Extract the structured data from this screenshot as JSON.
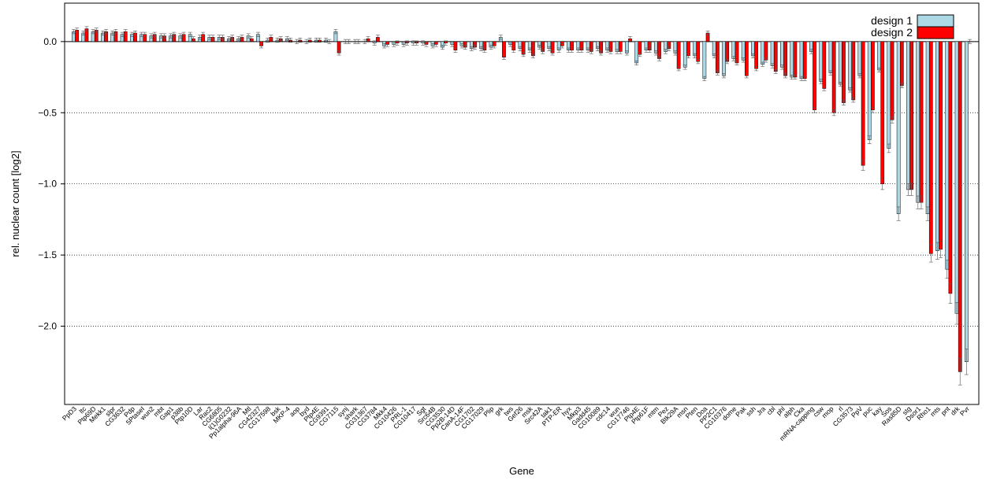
{
  "chart_data": {
    "type": "bar",
    "title": "",
    "xlabel": "Gene",
    "ylabel": "rel. nuclear count [log2]",
    "ylim": [
      -2.55,
      0.27
    ],
    "yticks": [
      0.0,
      -0.5,
      -1.0,
      -1.5,
      -2.0
    ],
    "ytick_labels": [
      "0.0",
      "−0.5",
      "−1.0",
      "−1.5",
      "−2.0"
    ],
    "grid": "horizontal dotted",
    "legend_position": "top-right",
    "colors": {
      "design 1": "#add8e6",
      "design 2": "#ff0000"
    },
    "categories": [
      "PpD3",
      "ltc",
      "Ptp69D",
      "Mekk1",
      "slpr",
      "CG3632",
      "Pdp",
      "5PtaseI",
      "wun2",
      "mbt",
      "Gap1",
      "p38b",
      "Ptp10D",
      "Lar",
      "Rac2",
      "CG6805",
      "l(1)G0232",
      "Pp1alpha-96A",
      "Mtl",
      "CG42327",
      "CG17598",
      "bsk",
      "MKP-4",
      "aop",
      "byd",
      "Ptp4E",
      "CG9391",
      "CG7115",
      "synj",
      "shark",
      "CG31367",
      "CG3784",
      "Mkk4",
      "CG10426",
      "PRL-1",
      "CG10417",
      "Sgt",
      "Src64B",
      "CG3530",
      "Pp2B-14D",
      "CanA-14F",
      "CG1702",
      "CG17029",
      "Plip",
      "grk",
      "tws",
      "Gef26",
      "msk",
      "Src42A",
      "tak1",
      "PTP-ER",
      "hyx",
      "Mkp3",
      "Gadd45",
      "CG10089",
      "cdc14",
      "wun",
      "CG17746",
      "Ptp4E",
      "Ptp61F",
      "mtm",
      "Pez",
      "Btk29A",
      "msn",
      "Pten",
      "Doa",
      "PP2C1",
      "CG10376",
      "dome",
      "Pak",
      "ssh",
      "Jra",
      "cbl",
      "phl",
      "alph",
      "Cka",
      "mRNA-capping",
      "csw",
      "mop",
      "rl",
      "CG3573",
      "PpV",
      "puc",
      "kay",
      "Sos",
      "Ras85D",
      "stg",
      "Dsor1",
      "Rho1",
      "mts",
      "pnt",
      "drk",
      "Pvr"
    ],
    "category_labels_shown": [
      "PpD3",
      "ltc",
      "Ptp69D",
      "Mekk1",
      "slpr",
      "CG3632",
      "Pdp",
      "5PtaseI",
      "wun2",
      "mbt",
      "Gap1",
      "p38b",
      "Ptp10D",
      "Lar",
      "Rac2",
      "CG6805",
      "l(1)G0232",
      "Pp1alpha-96A",
      "Mtl",
      "CG42327",
      "CG17598",
      "bsk",
      "MKP-4",
      "aop",
      "byd",
      "Ptp4E",
      "CG9391",
      "CG7115",
      "synj",
      "shark",
      "CG31367",
      "CG3784",
      "Mkk4",
      "CG10426",
      "PRL-1",
      "CG10417",
      "Sgt",
      "Src64B",
      "CG3530",
      "Pp2B-14D",
      "CanA-14F",
      "CG1702",
      "CG17029",
      "Plip",
      "grk",
      "tws",
      "Gef26",
      "msk",
      "Src42A",
      "tak1",
      "PTP-ER",
      "hyx",
      "Mkp3",
      "Gadd45",
      "CG10089",
      "cdc14",
      "wun",
      "CG17746",
      "Ptp4E",
      "Ptp61F",
      "mtm",
      "Pez",
      "Btk29A",
      "msn",
      "Pten",
      "Doa",
      "PP2C1",
      "CG10376",
      "dome",
      "Pak",
      "ssh",
      "Jra",
      "cbl",
      "phl",
      "alph",
      "Cka",
      "mRNA-capping",
      "csw",
      "mop",
      "rl",
      "CG3573",
      "PpV",
      "puc",
      "kay",
      "Sos",
      "Ras85D",
      "stg",
      "Dsor1",
      "Rho1",
      "mts",
      "pnt",
      "drk",
      "Pvr"
    ],
    "series": [
      {
        "name": "design 1",
        "values": [
          0.07,
          0.06,
          0.07,
          0.06,
          0.06,
          0.05,
          0.05,
          0.05,
          0.04,
          0.04,
          0.04,
          0.04,
          0.05,
          0.03,
          0.03,
          0.03,
          0.02,
          0.02,
          0.04,
          0.05,
          0.01,
          0.01,
          0.02,
          0.0,
          0.0,
          0.01,
          0.01,
          0.07,
          0.0,
          0.0,
          0.0,
          -0.01,
          -0.03,
          -0.02,
          -0.02,
          -0.01,
          -0.01,
          -0.03,
          -0.04,
          -0.02,
          -0.03,
          -0.05,
          -0.05,
          -0.04,
          0.03,
          -0.02,
          -0.05,
          -0.06,
          -0.04,
          -0.05,
          -0.06,
          -0.06,
          -0.06,
          -0.06,
          -0.05,
          -0.06,
          -0.07,
          -0.08,
          -0.15,
          -0.06,
          -0.08,
          -0.07,
          -0.08,
          -0.18,
          -0.1,
          -0.26,
          -0.1,
          -0.24,
          -0.12,
          -0.13,
          -0.1,
          -0.16,
          -0.17,
          -0.18,
          -0.25,
          -0.26,
          -0.07,
          -0.28,
          -0.22,
          -0.3,
          -0.34,
          -0.24,
          -0.69,
          -0.2,
          -0.75,
          -1.21,
          -1.04,
          -1.13,
          -1.21,
          -1.47,
          -1.6,
          -1.91,
          -2.25
        ]
      },
      {
        "name": "design 2",
        "values": [
          0.08,
          0.09,
          0.08,
          0.07,
          0.07,
          0.07,
          0.06,
          0.05,
          0.05,
          0.04,
          0.05,
          0.05,
          0.02,
          0.05,
          0.03,
          0.03,
          0.03,
          0.03,
          0.02,
          -0.03,
          0.03,
          0.02,
          0.01,
          0.01,
          0.01,
          0.01,
          0.0,
          -0.08,
          0.0,
          0.0,
          0.02,
          0.03,
          -0.02,
          -0.01,
          -0.01,
          -0.01,
          -0.02,
          -0.02,
          -0.01,
          -0.06,
          -0.04,
          -0.04,
          -0.06,
          -0.03,
          -0.11,
          -0.06,
          -0.09,
          -0.1,
          -0.07,
          -0.08,
          -0.03,
          -0.06,
          -0.06,
          -0.07,
          -0.08,
          -0.07,
          -0.07,
          0.02,
          -0.09,
          -0.06,
          -0.12,
          -0.05,
          -0.19,
          -0.1,
          -0.14,
          0.06,
          -0.22,
          -0.14,
          -0.15,
          -0.24,
          -0.19,
          -0.13,
          -0.21,
          -0.24,
          -0.25,
          -0.26,
          -0.48,
          -0.33,
          -0.5,
          -0.43,
          -0.41,
          -0.87,
          -0.48,
          -1.0,
          -0.55,
          -0.31,
          -1.04,
          -1.13,
          -1.49,
          -1.46,
          -1.77,
          -2.32,
          0.0
        ]
      }
    ]
  }
}
